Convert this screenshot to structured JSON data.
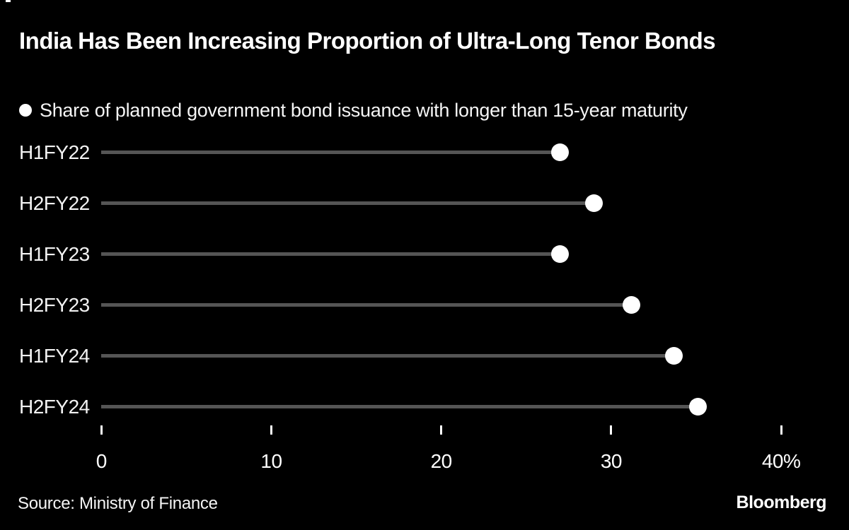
{
  "header": {
    "title": "India Has Been Increasing Proportion of Ultra-Long Tenor Bonds"
  },
  "legend": {
    "marker_icon": "filled-circle",
    "label": "Share of planned government bond issuance with longer than 15-year maturity"
  },
  "chart_data": {
    "type": "scatter",
    "variant": "lollipop",
    "orientation": "horizontal",
    "title": "India Has Been Increasing Proportion of Ultra-Long Tenor Bonds",
    "series_label": "Share of planned government bond issuance with longer than 15-year maturity",
    "categories": [
      "H1FY22",
      "H2FY22",
      "H1FY23",
      "H2FY23",
      "H1FY24",
      "H2FY24"
    ],
    "values": [
      27.0,
      29.0,
      27.0,
      31.2,
      33.7,
      35.1
    ],
    "unit": "%",
    "xlabel": "",
    "ylabel": "",
    "xlim": [
      0,
      40
    ],
    "x_ticks": [
      {
        "label": "0",
        "value": 0
      },
      {
        "label": "10",
        "value": 10
      },
      {
        "label": "20",
        "value": 20
      },
      {
        "label": "30",
        "value": 30
      },
      {
        "label": "40%",
        "value": 40
      }
    ],
    "grid": false,
    "legend_position": "top-left",
    "colors": {
      "background": "#000000",
      "stem": "#555555",
      "dot": "#ffffff",
      "text": "#ffffff"
    }
  },
  "footer": {
    "source": "Source: Ministry of Finance",
    "brand": "Bloomberg"
  }
}
